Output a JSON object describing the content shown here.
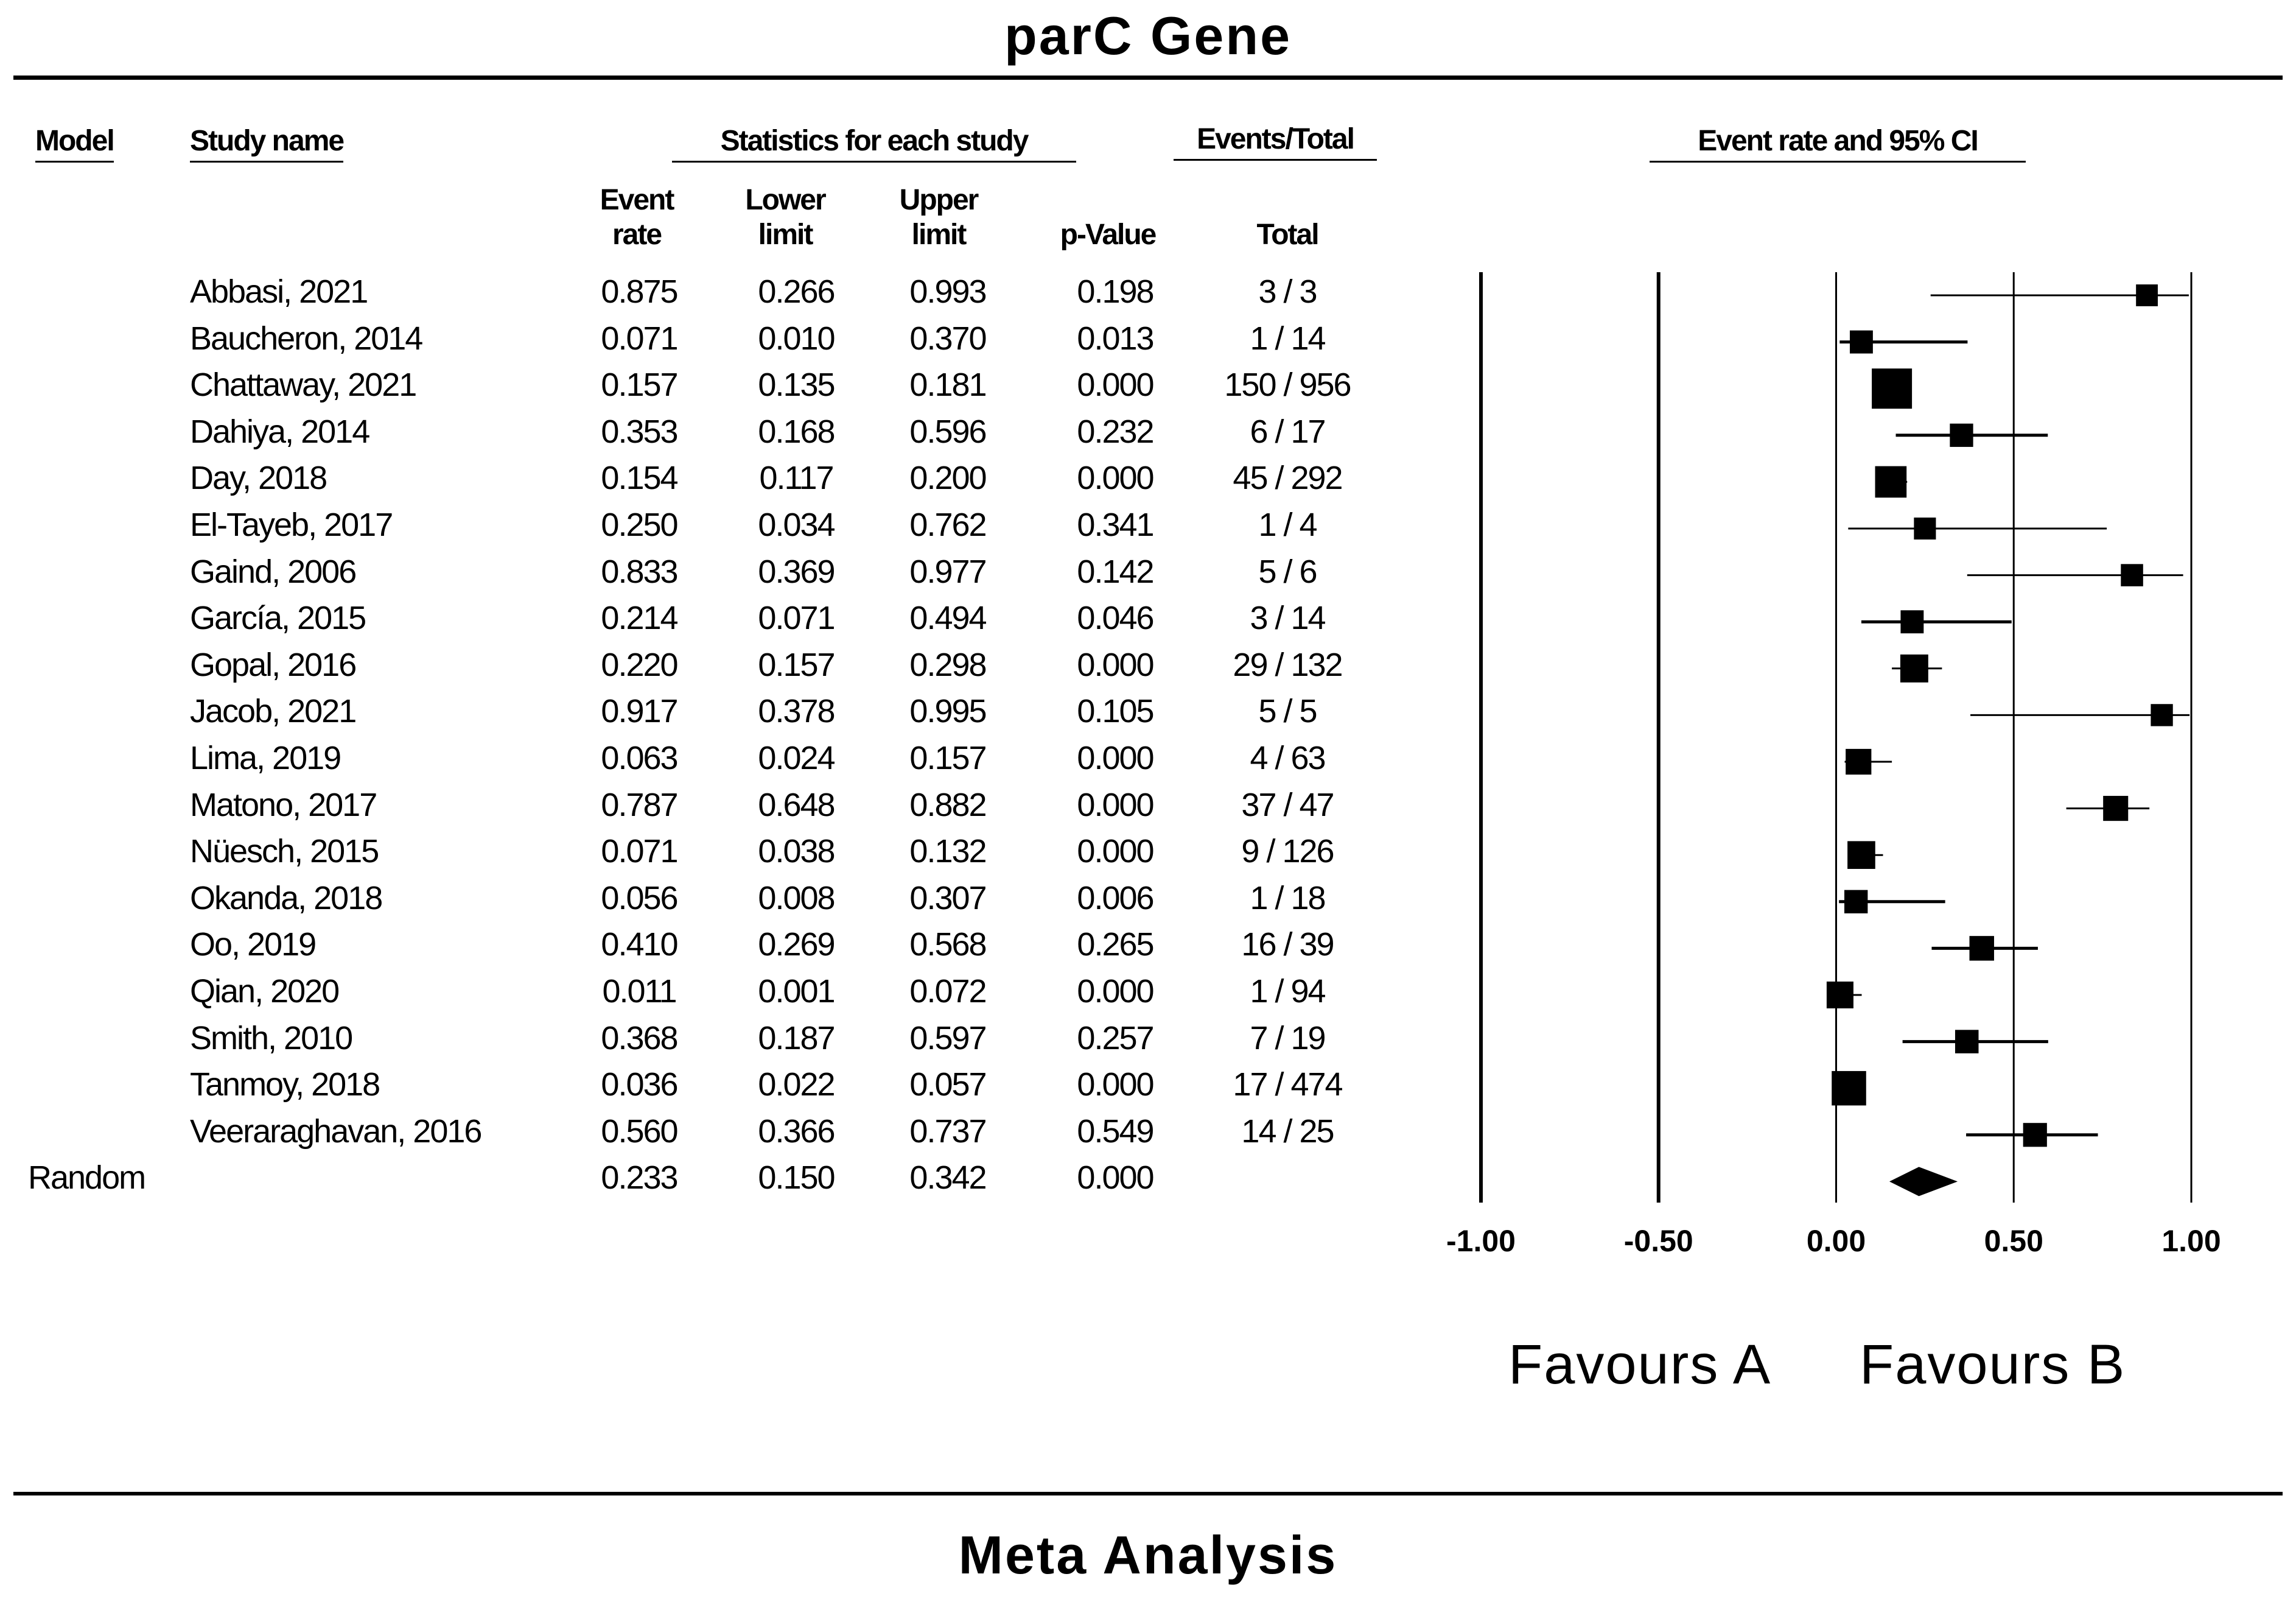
{
  "title": "parC Gene",
  "footer_title": "Meta Analysis",
  "headers": {
    "model": "Model",
    "study_name": "Study name",
    "statistics": "Statistics for each study",
    "events_total": "Events/Total",
    "plot": "Event rate and 95%  CI"
  },
  "subheaders": {
    "event_rate": "Event rate",
    "lower_limit": "Lower limit",
    "upper_limit": "Upper limit",
    "p_value": "p-Value",
    "total": "Total"
  },
  "favours": {
    "a": "Favours A",
    "b": "Favours B"
  },
  "colors": {
    "ink": "#000000",
    "background": "#ffffff"
  },
  "chart_data": {
    "type": "forest",
    "title": "parC Gene",
    "xlim": [
      -1.0,
      1.0
    ],
    "x_ticks": [
      "-1.00",
      "-0.50",
      "0.00",
      "0.50",
      "1.00"
    ],
    "x_tick_values": [
      -1.0,
      -0.5,
      0.0,
      0.5,
      1.0
    ],
    "studies": [
      {
        "name": "Abbasi, 2021",
        "rate": "0.875",
        "lower": "0.266",
        "upper": "0.993",
        "p": "0.198",
        "events": "3 / 3",
        "r": 0.875,
        "lo": 0.266,
        "hi": 0.993,
        "n": 3
      },
      {
        "name": "Baucheron, 2014",
        "rate": "0.071",
        "lower": "0.010",
        "upper": "0.370",
        "p": "0.013",
        "events": "1 / 14",
        "r": 0.071,
        "lo": 0.01,
        "hi": 0.37,
        "n": 14
      },
      {
        "name": "Chattaway, 2021",
        "rate": "0.157",
        "lower": "0.135",
        "upper": "0.181",
        "p": "0.000",
        "events": "150 / 956",
        "r": 0.157,
        "lo": 0.135,
        "hi": 0.181,
        "n": 956
      },
      {
        "name": "Dahiya, 2014",
        "rate": "0.353",
        "lower": "0.168",
        "upper": "0.596",
        "p": "0.232",
        "events": "6 / 17",
        "r": 0.353,
        "lo": 0.168,
        "hi": 0.596,
        "n": 17
      },
      {
        "name": "Day, 2018",
        "rate": "0.154",
        "lower": "0.117",
        "upper": "0.200",
        "p": "0.000",
        "events": "45 / 292",
        "r": 0.154,
        "lo": 0.117,
        "hi": 0.2,
        "n": 292
      },
      {
        "name": "El-Tayeb, 2017",
        "rate": "0.250",
        "lower": "0.034",
        "upper": "0.762",
        "p": "0.341",
        "events": "1 / 4",
        "r": 0.25,
        "lo": 0.034,
        "hi": 0.762,
        "n": 4
      },
      {
        "name": "Gaind, 2006",
        "rate": "0.833",
        "lower": "0.369",
        "upper": "0.977",
        "p": "0.142",
        "events": "5 / 6",
        "r": 0.833,
        "lo": 0.369,
        "hi": 0.977,
        "n": 6
      },
      {
        "name": "García, 2015",
        "rate": "0.214",
        "lower": "0.071",
        "upper": "0.494",
        "p": "0.046",
        "events": "3 / 14",
        "r": 0.214,
        "lo": 0.071,
        "hi": 0.494,
        "n": 14
      },
      {
        "name": "Gopal, 2016",
        "rate": "0.220",
        "lower": "0.157",
        "upper": "0.298",
        "p": "0.000",
        "events": "29 / 132",
        "r": 0.22,
        "lo": 0.157,
        "hi": 0.298,
        "n": 132
      },
      {
        "name": "Jacob, 2021",
        "rate": "0.917",
        "lower": "0.378",
        "upper": "0.995",
        "p": "0.105",
        "events": "5 / 5",
        "r": 0.917,
        "lo": 0.378,
        "hi": 0.995,
        "n": 5
      },
      {
        "name": "Lima, 2019",
        "rate": "0.063",
        "lower": "0.024",
        "upper": "0.157",
        "p": "0.000",
        "events": "4 / 63",
        "r": 0.063,
        "lo": 0.024,
        "hi": 0.157,
        "n": 63
      },
      {
        "name": "Matono, 2017",
        "rate": "0.787",
        "lower": "0.648",
        "upper": "0.882",
        "p": "0.000",
        "events": "37 / 47",
        "r": 0.787,
        "lo": 0.648,
        "hi": 0.882,
        "n": 47
      },
      {
        "name": "Nüesch, 2015",
        "rate": "0.071",
        "lower": "0.038",
        "upper": "0.132",
        "p": "0.000",
        "events": "9 / 126",
        "r": 0.071,
        "lo": 0.038,
        "hi": 0.132,
        "n": 126
      },
      {
        "name": "Okanda, 2018",
        "rate": "0.056",
        "lower": "0.008",
        "upper": "0.307",
        "p": "0.006",
        "events": "1 / 18",
        "r": 0.056,
        "lo": 0.008,
        "hi": 0.307,
        "n": 18
      },
      {
        "name": "Oo, 2019",
        "rate": "0.410",
        "lower": "0.269",
        "upper": "0.568",
        "p": "0.265",
        "events": "16 / 39",
        "r": 0.41,
        "lo": 0.269,
        "hi": 0.568,
        "n": 39
      },
      {
        "name": "Qian, 2020",
        "rate": "0.011",
        "lower": "0.001",
        "upper": "0.072",
        "p": "0.000",
        "events": "1 / 94",
        "r": 0.011,
        "lo": 0.001,
        "hi": 0.072,
        "n": 94
      },
      {
        "name": "Smith, 2010",
        "rate": "0.368",
        "lower": "0.187",
        "upper": "0.597",
        "p": "0.257",
        "events": "7 / 19",
        "r": 0.368,
        "lo": 0.187,
        "hi": 0.597,
        "n": 19
      },
      {
        "name": "Tanmoy, 2018",
        "rate": "0.036",
        "lower": "0.022",
        "upper": "0.057",
        "p": "0.000",
        "events": "17 / 474",
        "r": 0.036,
        "lo": 0.022,
        "hi": 0.057,
        "n": 474
      },
      {
        "name": "Veeraraghavan, 2016",
        "rate": "0.560",
        "lower": "0.366",
        "upper": "0.737",
        "p": "0.549",
        "events": "14 / 25",
        "r": 0.56,
        "lo": 0.366,
        "hi": 0.737,
        "n": 25
      }
    ],
    "summary": {
      "model": "Random",
      "rate": "0.233",
      "lower": "0.150",
      "upper": "0.342",
      "p": "0.000",
      "r": 0.233,
      "lo": 0.15,
      "hi": 0.342
    }
  }
}
